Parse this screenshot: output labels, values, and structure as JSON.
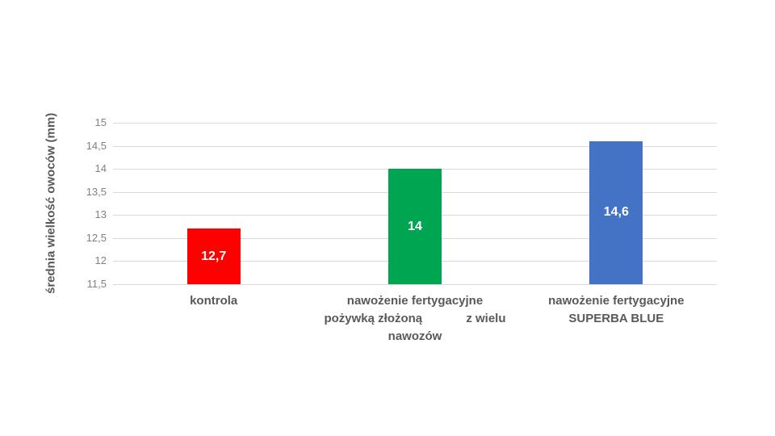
{
  "chart_data": {
    "type": "bar",
    "title": "",
    "xlabel": "",
    "ylabel": "średnia wielkość owoców (mm)",
    "ylim": [
      11.5,
      15
    ],
    "grid": true,
    "legend": false,
    "yticks": [
      {
        "value": 15,
        "label": "15"
      },
      {
        "value": 14.5,
        "label": "14,5"
      },
      {
        "value": 14,
        "label": "14"
      },
      {
        "value": 13.5,
        "label": "13,5"
      },
      {
        "value": 13,
        "label": "13"
      },
      {
        "value": 12.5,
        "label": "12,5"
      },
      {
        "value": 12,
        "label": "12"
      },
      {
        "value": 11.5,
        "label": "11,5"
      }
    ],
    "categories": [
      "kontrola",
      "nawożenie fertygacyjne pożywką złożoną z wielu nawozów",
      "nawożenie fertygacyjne SUPERBA BLUE"
    ],
    "series": [
      {
        "name": "średnia wielkość owoców (mm)",
        "values": [
          12.7,
          14,
          14.6
        ]
      }
    ],
    "bars": [
      {
        "category_lines": [
          "kontrola"
        ],
        "value": 12.7,
        "value_label": "12,7",
        "color": "#fe0000"
      },
      {
        "category_lines": [
          "nawożenie fertygacyjne",
          "pożywką złożoną             z wielu",
          "nawozów"
        ],
        "value": 14,
        "value_label": "14",
        "color": "#00a551"
      },
      {
        "category_lines": [
          "nawożenie fertygacyjne",
          "SUPERBA BLUE"
        ],
        "value": 14.6,
        "value_label": "14,6",
        "color": "#4472c4"
      }
    ],
    "colors": {
      "gridline": "#d9d9d9",
      "tick_text": "#808080",
      "category_text": "#595959",
      "axis_title_text": "#595959",
      "value_text": "#ffffff",
      "background": "#ffffff"
    }
  }
}
